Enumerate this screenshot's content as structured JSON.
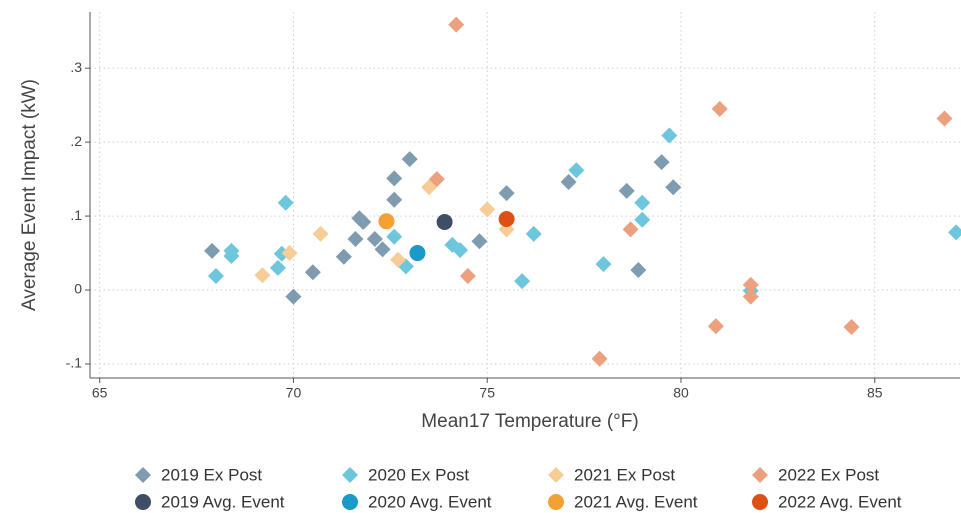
{
  "chart_data": {
    "type": "scatter",
    "xlabel": "Mean17 Temperature (°F)",
    "ylabel": "Average Event Impact (kW)",
    "xlim": [
      64.75,
      87.2
    ],
    "ylim": [
      -0.119,
      0.376
    ],
    "xticks": [
      65,
      70,
      75,
      80,
      85
    ],
    "yticks": [
      {
        "value": 0.3,
        "label": ".3"
      },
      {
        "value": 0.2,
        "label": ".2"
      },
      {
        "value": 0.1,
        "label": ".1"
      },
      0,
      {
        "value": -0.1,
        "label": "-.1"
      }
    ],
    "grid": true,
    "legend": "bottom",
    "series": [
      {
        "name": "2019 Ex Post",
        "color": "#7f9bb0",
        "marker": "diamond",
        "x": [
          67.9,
          70.0,
          70.5,
          71.3,
          71.6,
          71.7,
          71.8,
          72.1,
          72.3,
          72.6,
          72.6,
          73.0,
          74.8,
          75.5,
          77.1,
          78.6,
          78.9,
          79.5,
          79.8
        ],
        "values": [
          0.053,
          -0.009,
          0.024,
          0.045,
          0.069,
          0.097,
          0.092,
          0.069,
          0.055,
          0.151,
          0.122,
          0.177,
          0.066,
          0.131,
          0.146,
          0.134,
          0.027,
          0.173,
          0.139
        ]
      },
      {
        "name": "2020 Ex Post",
        "color": "#6ec6dd",
        "marker": "diamond",
        "x": [
          68.0,
          68.4,
          68.4,
          69.6,
          69.7,
          69.8,
          72.6,
          72.9,
          74.1,
          74.3,
          75.9,
          76.2,
          77.3,
          78.0,
          79.0,
          79.0,
          79.7,
          81.8,
          87.1
        ],
        "values": [
          0.019,
          0.053,
          0.046,
          0.03,
          0.049,
          0.118,
          0.072,
          0.032,
          0.061,
          0.054,
          0.012,
          0.076,
          0.162,
          0.035,
          0.118,
          0.095,
          0.209,
          -0.001,
          0.078
        ]
      },
      {
        "name": "2021 Ex Post",
        "color": "#f6cd96",
        "marker": "diamond",
        "x": [
          69.2,
          69.9,
          70.7,
          72.7,
          73.5,
          75.0,
          75.5
        ],
        "values": [
          0.02,
          0.05,
          0.076,
          0.041,
          0.139,
          0.109,
          0.082
        ]
      },
      {
        "name": "2022 Ex Post",
        "color": "#eda07e",
        "marker": "diamond",
        "x": [
          74.2,
          73.7,
          74.5,
          77.9,
          78.7,
          81.0,
          80.9,
          81.8,
          81.8,
          84.4,
          86.8
        ],
        "values": [
          0.359,
          0.15,
          0.019,
          -0.093,
          0.082,
          0.245,
          -0.049,
          0.007,
          -0.009,
          -0.05,
          0.232
        ]
      },
      {
        "name": "2019 Avg. Event",
        "color": "#3e4e66",
        "marker": "circle",
        "x": [
          73.9
        ],
        "values": [
          0.092
        ]
      },
      {
        "name": "2020 Avg. Event",
        "color": "#1a9ac8",
        "marker": "circle",
        "x": [
          73.2
        ],
        "values": [
          0.05
        ]
      },
      {
        "name": "2021 Avg. Event",
        "color": "#f5a033",
        "marker": "circle",
        "x": [
          72.4
        ],
        "values": [
          0.093
        ]
      },
      {
        "name": "2022 Avg. Event",
        "color": "#dd4f12",
        "marker": "circle",
        "x": [
          75.5
        ],
        "values": [
          0.096
        ]
      }
    ]
  }
}
